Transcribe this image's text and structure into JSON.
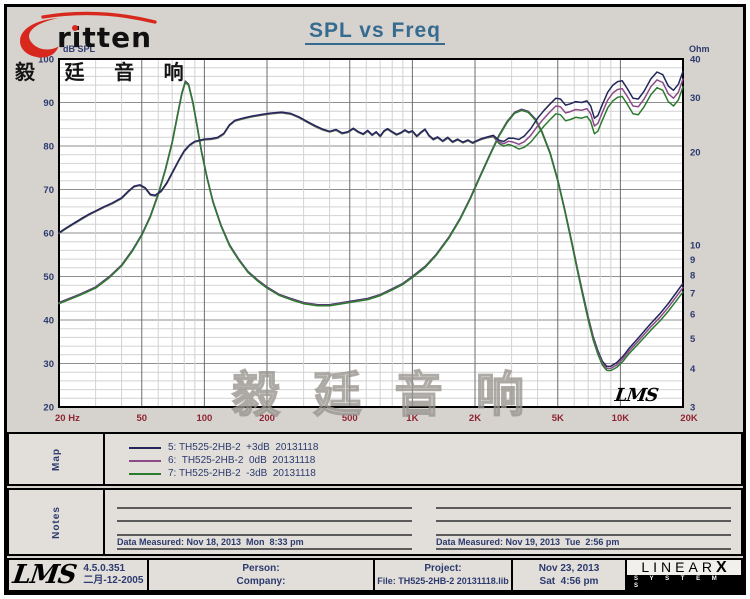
{
  "logo": {
    "brand": "ritten",
    "cn": "毅 廷 音 响"
  },
  "watermark": "毅 廷 音 响",
  "chart_data": {
    "type": "line",
    "title": "SPL vs Freq",
    "x_axis": {
      "unit": "Hz",
      "scale": "log",
      "min": 20,
      "max": 20000,
      "ticks": [
        {
          "f": 20,
          "label": "20 Hz"
        },
        {
          "f": 50,
          "label": "50"
        },
        {
          "f": 100,
          "label": "100"
        },
        {
          "f": 200,
          "label": "200"
        },
        {
          "f": 500,
          "label": "500"
        },
        {
          "f": 1000,
          "label": "1K"
        },
        {
          "f": 2000,
          "label": "2K"
        },
        {
          "f": 5000,
          "label": "5K"
        },
        {
          "f": 10000,
          "label": "10K"
        },
        {
          "f": 20000,
          "label": "20K"
        }
      ]
    },
    "y_left": {
      "label": "dB SPL",
      "scale": "linear",
      "min": 20,
      "max": 100,
      "ticks": [
        100,
        90,
        80,
        70,
        60,
        50,
        40,
        30,
        20
      ],
      "minor_step": 2
    },
    "y_right": {
      "label": "Ohm",
      "scale": "log",
      "min": 3,
      "max": 40,
      "ticks": [
        40,
        30,
        20,
        10,
        9,
        8,
        7,
        6,
        5,
        4,
        3
      ]
    },
    "series": [
      {
        "name": "5: TH525-2HB-2  +3dB  20131118",
        "color": "#23265a",
        "hf_offset_db": 1.8
      },
      {
        "name": "6:  TH525-2HB-2  0dB  20131118",
        "color": "#8d4a88",
        "hf_offset_db": 0
      },
      {
        "name": "7: TH525-2HB-2  -3dB  20131118",
        "color": "#2b7b2e",
        "hf_offset_db": -1.8
      }
    ],
    "spl_base_curve_db": [
      [
        20,
        60
      ],
      [
        22,
        61.3
      ],
      [
        24,
        62.4
      ],
      [
        26,
        63.4
      ],
      [
        28,
        64.3
      ],
      [
        30,
        65
      ],
      [
        33,
        66
      ],
      [
        36,
        66.8
      ],
      [
        40,
        68
      ],
      [
        43,
        69.5
      ],
      [
        46,
        70.7
      ],
      [
        49,
        71
      ],
      [
        52,
        70.3
      ],
      [
        55,
        68.8
      ],
      [
        58,
        68.6
      ],
      [
        62,
        69.6
      ],
      [
        66,
        71.5
      ],
      [
        70,
        73.8
      ],
      [
        75,
        76.5
      ],
      [
        80,
        78.8
      ],
      [
        85,
        80.2
      ],
      [
        90,
        81
      ],
      [
        100,
        81.5
      ],
      [
        108,
        81.6
      ],
      [
        116,
        81.9
      ],
      [
        124,
        82.8
      ],
      [
        132,
        84.8
      ],
      [
        140,
        85.8
      ],
      [
        155,
        86.4
      ],
      [
        170,
        86.8
      ],
      [
        190,
        87.2
      ],
      [
        210,
        87.5
      ],
      [
        235,
        87.7
      ],
      [
        260,
        87.4
      ],
      [
        285,
        86.6
      ],
      [
        310,
        85.6
      ],
      [
        340,
        84.6
      ],
      [
        370,
        83.8
      ],
      [
        400,
        83.3
      ],
      [
        430,
        83.7
      ],
      [
        460,
        82.9
      ],
      [
        490,
        83.2
      ],
      [
        520,
        84
      ],
      [
        550,
        83.2
      ],
      [
        580,
        82.7
      ],
      [
        610,
        83.5
      ],
      [
        640,
        82.5
      ],
      [
        670,
        83.2
      ],
      [
        700,
        82.2
      ],
      [
        730,
        83.4
      ],
      [
        760,
        83.9
      ],
      [
        800,
        83.2
      ],
      [
        840,
        82.6
      ],
      [
        880,
        83
      ],
      [
        920,
        83.6
      ],
      [
        960,
        83.1
      ],
      [
        1000,
        83.4
      ],
      [
        1050,
        82.2
      ],
      [
        1100,
        83.1
      ],
      [
        1150,
        83.8
      ],
      [
        1200,
        82.4
      ],
      [
        1260,
        81.5
      ],
      [
        1320,
        82
      ],
      [
        1400,
        81.1
      ],
      [
        1480,
        81.9
      ],
      [
        1560,
        80.9
      ],
      [
        1650,
        81.5
      ],
      [
        1750,
        80.8
      ],
      [
        1850,
        81.3
      ],
      [
        1950,
        80.7
      ],
      [
        2050,
        81.2
      ],
      [
        2150,
        81.6
      ],
      [
        2300,
        82
      ],
      [
        2450,
        82.3
      ],
      [
        2600,
        81
      ],
      [
        2750,
        80.5
      ],
      [
        2900,
        81.1
      ],
      [
        3050,
        80.9
      ],
      [
        3250,
        80.4
      ],
      [
        3450,
        81
      ],
      [
        3700,
        82.4
      ],
      [
        4000,
        84.6
      ],
      [
        4300,
        86.4
      ],
      [
        4600,
        87.9
      ],
      [
        4900,
        89.2
      ],
      [
        5150,
        89
      ],
      [
        5450,
        87.6
      ],
      [
        5750,
        87.9
      ],
      [
        6100,
        88.4
      ],
      [
        6500,
        88.2
      ],
      [
        6900,
        88.6
      ],
      [
        7200,
        87.4
      ],
      [
        7500,
        84.6
      ],
      [
        7800,
        85.2
      ],
      [
        8200,
        87.8
      ],
      [
        8700,
        90.6
      ],
      [
        9200,
        92.2
      ],
      [
        9700,
        93
      ],
      [
        10200,
        93.2
      ],
      [
        10800,
        91.4
      ],
      [
        11500,
        89.2
      ],
      [
        12200,
        89
      ],
      [
        13000,
        90.8
      ],
      [
        14000,
        93.6
      ],
      [
        15000,
        95.2
      ],
      [
        16000,
        94.6
      ],
      [
        17000,
        92
      ],
      [
        18000,
        91
      ],
      [
        19000,
        92.4
      ],
      [
        20000,
        95.4
      ]
    ],
    "impedance_curve_ohm": [
      [
        20,
        6.5
      ],
      [
        25,
        6.9
      ],
      [
        30,
        7.3
      ],
      [
        35,
        7.9
      ],
      [
        40,
        8.6
      ],
      [
        45,
        9.6
      ],
      [
        50,
        10.8
      ],
      [
        55,
        12.4
      ],
      [
        60,
        14.6
      ],
      [
        65,
        17.6
      ],
      [
        70,
        21.5
      ],
      [
        74,
        26
      ],
      [
        78,
        31
      ],
      [
        81,
        33.8
      ],
      [
        84,
        33
      ],
      [
        88,
        29
      ],
      [
        92,
        24.5
      ],
      [
        97,
        20
      ],
      [
        103,
        16.5
      ],
      [
        110,
        13.8
      ],
      [
        120,
        11.6
      ],
      [
        132,
        10
      ],
      [
        146,
        9
      ],
      [
        162,
        8.2
      ],
      [
        180,
        7.7
      ],
      [
        200,
        7.3
      ],
      [
        230,
        6.9
      ],
      [
        260,
        6.7
      ],
      [
        300,
        6.5
      ],
      [
        350,
        6.4
      ],
      [
        400,
        6.4
      ],
      [
        460,
        6.5
      ],
      [
        530,
        6.6
      ],
      [
        610,
        6.7
      ],
      [
        700,
        6.9
      ],
      [
        800,
        7.2
      ],
      [
        900,
        7.5
      ],
      [
        1000,
        7.9
      ],
      [
        1150,
        8.5
      ],
      [
        1300,
        9.3
      ],
      [
        1500,
        10.6
      ],
      [
        1700,
        12.2
      ],
      [
        1900,
        14.2
      ],
      [
        2100,
        16.5
      ],
      [
        2350,
        19.5
      ],
      [
        2600,
        22.5
      ],
      [
        2850,
        25
      ],
      [
        3100,
        26.8
      ],
      [
        3350,
        27.4
      ],
      [
        3600,
        27
      ],
      [
        3900,
        25.5
      ],
      [
        4200,
        23.2
      ],
      [
        4600,
        19.8
      ],
      [
        5000,
        16.2
      ],
      [
        5400,
        13
      ],
      [
        5800,
        10.4
      ],
      [
        6200,
        8.4
      ],
      [
        6600,
        6.9
      ],
      [
        7000,
        5.8
      ],
      [
        7400,
        5
      ],
      [
        7800,
        4.5
      ],
      [
        8200,
        4.15
      ],
      [
        8600,
        4
      ],
      [
        9000,
        4
      ],
      [
        9600,
        4.1
      ],
      [
        10300,
        4.3
      ],
      [
        11000,
        4.55
      ],
      [
        12000,
        4.85
      ],
      [
        13000,
        5.15
      ],
      [
        14000,
        5.45
      ],
      [
        15500,
        5.85
      ],
      [
        17000,
        6.3
      ],
      [
        18500,
        6.8
      ],
      [
        20000,
        7.3
      ]
    ],
    "plot_annotation": "LMS"
  },
  "map_panel": {
    "label": "Map"
  },
  "notes_panel": {
    "label": "Notes",
    "left_note": "Data Measured: Nov 18, 2013  Mon  8:33 pm",
    "right_note": "Data Measured: Nov 19, 2013  Tue  2:56 pm"
  },
  "footer": {
    "lms": "LMS",
    "version": "4.5.0.351",
    "version_date": "二月-12-2005",
    "person": "Person:",
    "company": "Company:",
    "project": "Project:",
    "file": "File: TH525-2HB-2 20131118.lib",
    "date": "Nov 23, 2013",
    "time": "Sat  4:56 pm",
    "brand_top": "LINEAR",
    "brand_x": "X",
    "brand_bottom": "S Y S T E M S"
  },
  "colors": {
    "navy": "#2c3a6e",
    "axis_red": "#8e2433",
    "title_blue": "#366b90",
    "grid_minor": "#d2d2d2",
    "grid_major": "#8f8f8f",
    "grid_labeled": "#6e6e6e",
    "window_bg": "#d6d3ce",
    "plot_bg": "#ffffff",
    "brand_red": "#d8281e",
    "rule": "#5a5a5a"
  }
}
